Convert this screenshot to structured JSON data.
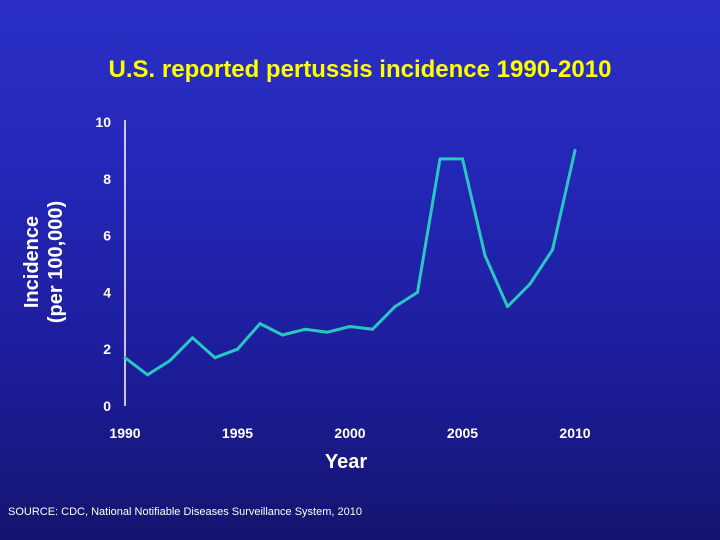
{
  "colors": {
    "title": "#ffff00",
    "line": "#29c7c0",
    "axis": "#ffffff",
    "text": "#ffffff"
  },
  "source_text": "SOURCE: CDC, National Notifiable Diseases Surveillance System, 2010",
  "chart_data": {
    "type": "line",
    "title": "U.S. reported pertussis incidence 1990-2010",
    "xlabel": "Year",
    "ylabel_line1": "Incidence",
    "ylabel_line2": "(per 100,000)",
    "xlim": [
      1990,
      2010
    ],
    "ylim": [
      0,
      10
    ],
    "xticks": [
      "1990",
      "1995",
      "2000",
      "2005",
      "2010"
    ],
    "yticks": [
      "0",
      "2",
      "4",
      "6",
      "8",
      "10"
    ],
    "series": [
      {
        "name": "Incidence",
        "x": [
          1990,
          1991,
          1992,
          1993,
          1994,
          1995,
          1996,
          1997,
          1998,
          1999,
          2000,
          2001,
          2002,
          2003,
          2004,
          2005,
          2006,
          2007,
          2008,
          2009,
          2010
        ],
        "values": [
          1.7,
          1.1,
          1.6,
          2.4,
          1.7,
          2.0,
          2.9,
          2.5,
          2.7,
          2.6,
          2.8,
          2.7,
          3.5,
          4.0,
          8.7,
          8.7,
          5.3,
          3.5,
          4.3,
          5.5,
          9.0
        ]
      }
    ]
  }
}
